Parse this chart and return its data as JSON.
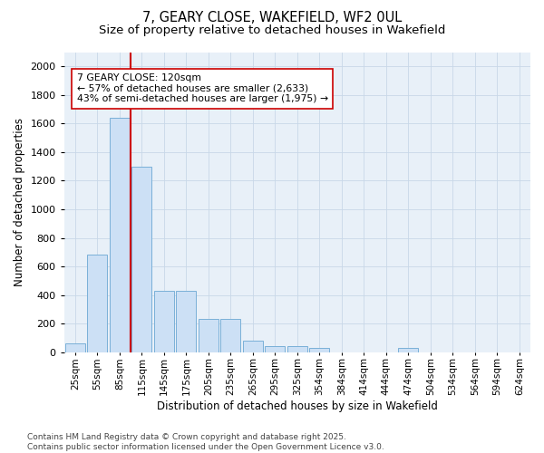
{
  "title1": "7, GEARY CLOSE, WAKEFIELD, WF2 0UL",
  "title2": "Size of property relative to detached houses in Wakefield",
  "xlabel": "Distribution of detached houses by size in Wakefield",
  "ylabel": "Number of detached properties",
  "categories": [
    "25sqm",
    "55sqm",
    "85sqm",
    "115sqm",
    "145sqm",
    "175sqm",
    "205sqm",
    "235sqm",
    "265sqm",
    "295sqm",
    "325sqm",
    "354sqm",
    "384sqm",
    "414sqm",
    "444sqm",
    "474sqm",
    "504sqm",
    "534sqm",
    "564sqm",
    "594sqm",
    "624sqm"
  ],
  "values": [
    65,
    680,
    1640,
    1300,
    430,
    430,
    230,
    230,
    80,
    40,
    40,
    30,
    0,
    0,
    0,
    30,
    0,
    0,
    0,
    0,
    0
  ],
  "bar_color": "#cce0f5",
  "bar_edge_color": "#7ab0d8",
  "vline_color": "#cc0000",
  "annotation_text": "7 GEARY CLOSE: 120sqm\n← 57% of detached houses are smaller (2,633)\n43% of semi-detached houses are larger (1,975) →",
  "annotation_box_color": "#ffffff",
  "annotation_box_edge": "#cc0000",
  "ylim": [
    0,
    2100
  ],
  "yticks": [
    0,
    200,
    400,
    600,
    800,
    1000,
    1200,
    1400,
    1600,
    1800,
    2000
  ],
  "grid_color": "#c8d8e8",
  "bg_color": "#e8f0f8",
  "footnote": "Contains HM Land Registry data © Crown copyright and database right 2025.\nContains public sector information licensed under the Open Government Licence v3.0.",
  "title_fontsize": 10.5,
  "subtitle_fontsize": 9.5,
  "axis_label_fontsize": 8.5,
  "tick_fontsize": 8,
  "annot_fontsize": 7.8,
  "footnote_fontsize": 6.5
}
